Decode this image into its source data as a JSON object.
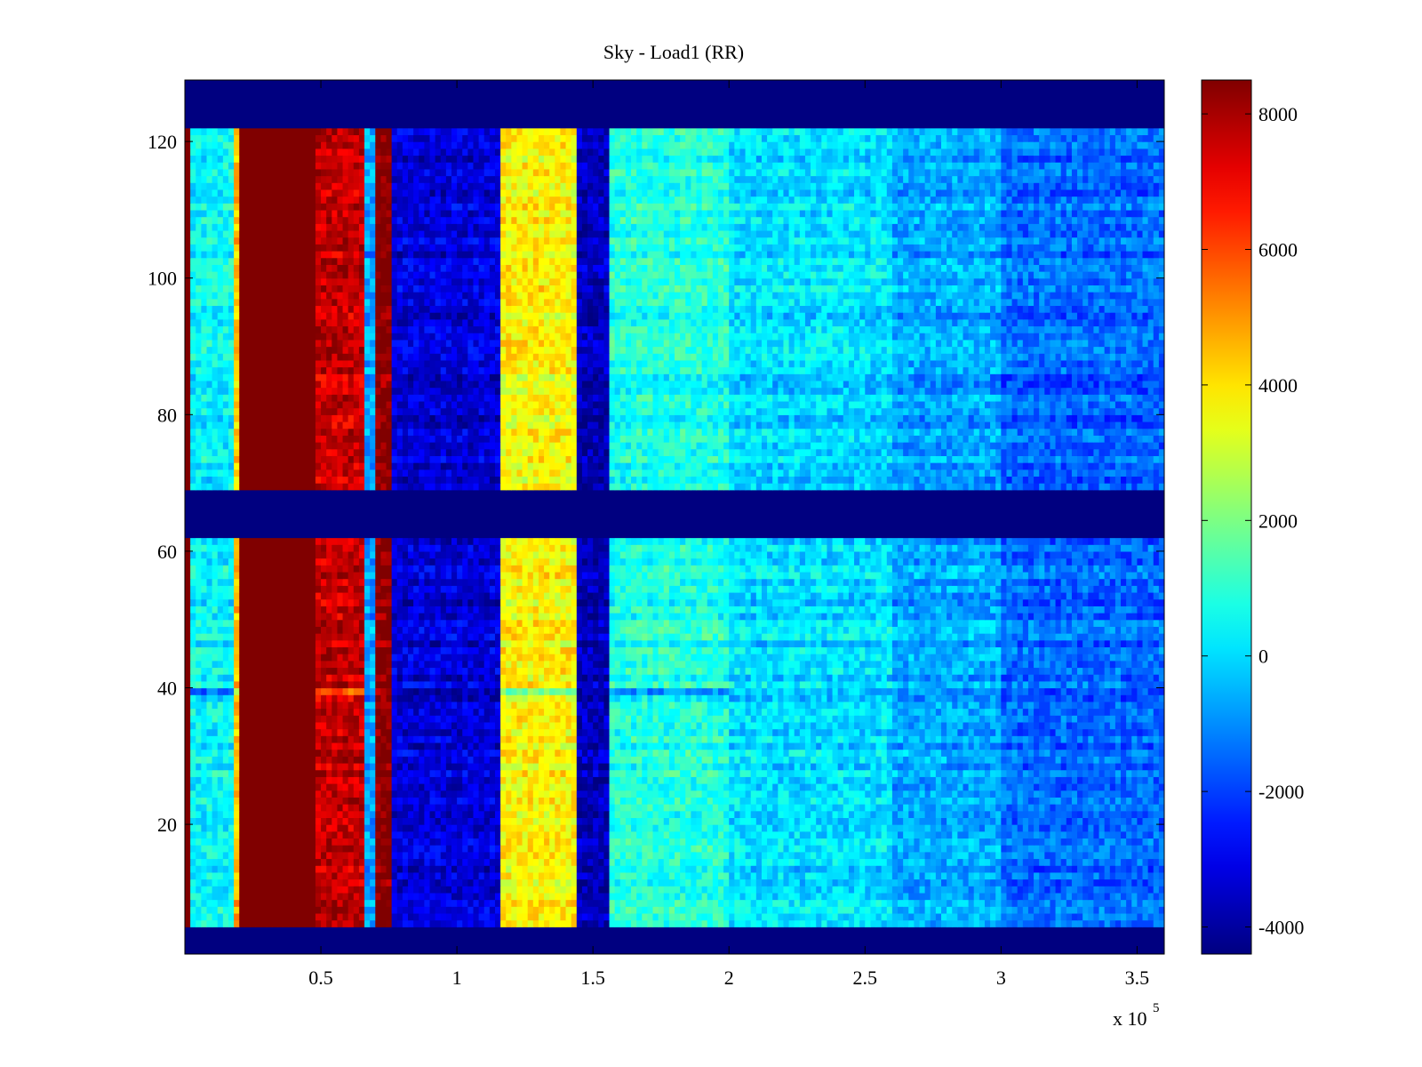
{
  "chart_data": {
    "type": "heatmap",
    "title": "Sky - Load1 (RR)",
    "xlabel": "",
    "ylabel": "",
    "x_multiplier_label": "x 10",
    "x_multiplier_exponent": "5",
    "xlim": [
      0,
      3.6
    ],
    "ylim": [
      1,
      129
    ],
    "x_ticks": [
      {
        "value": 0.5,
        "label": "0.5"
      },
      {
        "value": 1.0,
        "label": "1"
      },
      {
        "value": 1.5,
        "label": "1.5"
      },
      {
        "value": 2.0,
        "label": "2"
      },
      {
        "value": 2.5,
        "label": "2.5"
      },
      {
        "value": 3.0,
        "label": "3"
      },
      {
        "value": 3.5,
        "label": "3.5"
      }
    ],
    "y_ticks": [
      {
        "value": 20,
        "label": "20"
      },
      {
        "value": 40,
        "label": "40"
      },
      {
        "value": 60,
        "label": "60"
      },
      {
        "value": 80,
        "label": "80"
      },
      {
        "value": 100,
        "label": "100"
      },
      {
        "value": 120,
        "label": "120"
      }
    ],
    "colorbar": {
      "colormap": "jet",
      "clim": [
        -4400,
        8500
      ],
      "ticks": [
        {
          "value": 8000,
          "label": "8000"
        },
        {
          "value": 6000,
          "label": "6000"
        },
        {
          "value": 4000,
          "label": "4000"
        },
        {
          "value": 2000,
          "label": "2000"
        },
        {
          "value": 0,
          "label": "0"
        },
        {
          "value": -2000,
          "label": "-2000"
        },
        {
          "value": -4000,
          "label": "-4000"
        }
      ]
    },
    "flagged_rows": [
      [
        1,
        4
      ],
      [
        62,
        68
      ],
      [
        122,
        129
      ]
    ],
    "anomalous_row": 39,
    "column_bands": [
      {
        "x_start": 0.0,
        "x_end": 0.02,
        "value": 8500
      },
      {
        "x_start": 0.02,
        "x_end": 0.19,
        "value": 400
      },
      {
        "x_start": 0.19,
        "x_end": 0.21,
        "value": 4500
      },
      {
        "x_start": 0.21,
        "x_end": 0.48,
        "value": 8500
      },
      {
        "x_start": 0.48,
        "x_end": 0.66,
        "value": 7600
      },
      {
        "x_start": 0.66,
        "x_end": 0.7,
        "value": -800
      },
      {
        "x_start": 0.7,
        "x_end": 0.77,
        "value": 8500
      },
      {
        "x_start": 0.77,
        "x_end": 1.16,
        "value": -3300
      },
      {
        "x_start": 1.16,
        "x_end": 1.45,
        "value": 3700
      },
      {
        "x_start": 1.45,
        "x_end": 1.56,
        "value": -3700
      },
      {
        "x_start": 1.56,
        "x_end": 2.0,
        "value": 800
      },
      {
        "x_start": 2.0,
        "x_end": 2.6,
        "value": 0
      },
      {
        "x_start": 2.6,
        "x_end": 3.0,
        "value": -700
      },
      {
        "x_start": 3.0,
        "x_end": 3.6,
        "value": -1500
      }
    ]
  }
}
